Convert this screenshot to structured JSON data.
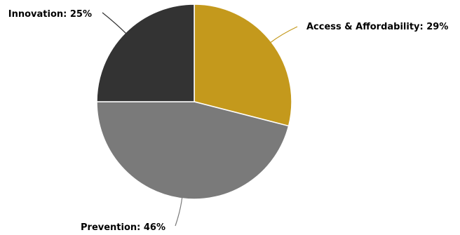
{
  "chart_data": {
    "type": "pie",
    "title": "",
    "slices": [
      {
        "label": "Access & Affordability: 29%",
        "name": "Access & Affordability",
        "value": 29,
        "color": "#c4991c"
      },
      {
        "label": "Prevention: 46%",
        "name": "Prevention",
        "value": 46,
        "color": "#7a7a7a"
      },
      {
        "label": "Innovation: 25%",
        "name": "Innovation",
        "value": 25,
        "color": "#333333"
      }
    ],
    "legend": false
  }
}
